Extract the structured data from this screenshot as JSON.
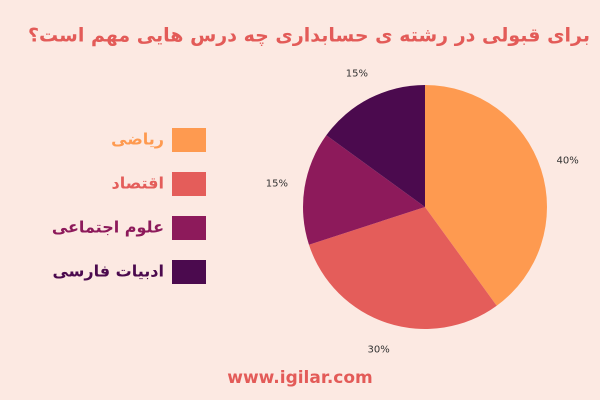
{
  "chart_data": {
    "type": "pie",
    "title": "برای قبولی در رشته ی حسابداری چه درس هایی مهم است؟",
    "categories": [
      "ریاضی",
      "اقتصاد",
      "علوم اجتماعی",
      "ادبیات فارسی"
    ],
    "values": [
      40,
      30,
      15,
      15
    ],
    "value_labels": [
      "40%",
      "30%",
      "15%",
      "15%"
    ],
    "colors": [
      "#fe9a50",
      "#e45d5a",
      "#8d1a5b",
      "#4b0a4e"
    ]
  },
  "footer": "www.igilar.com"
}
